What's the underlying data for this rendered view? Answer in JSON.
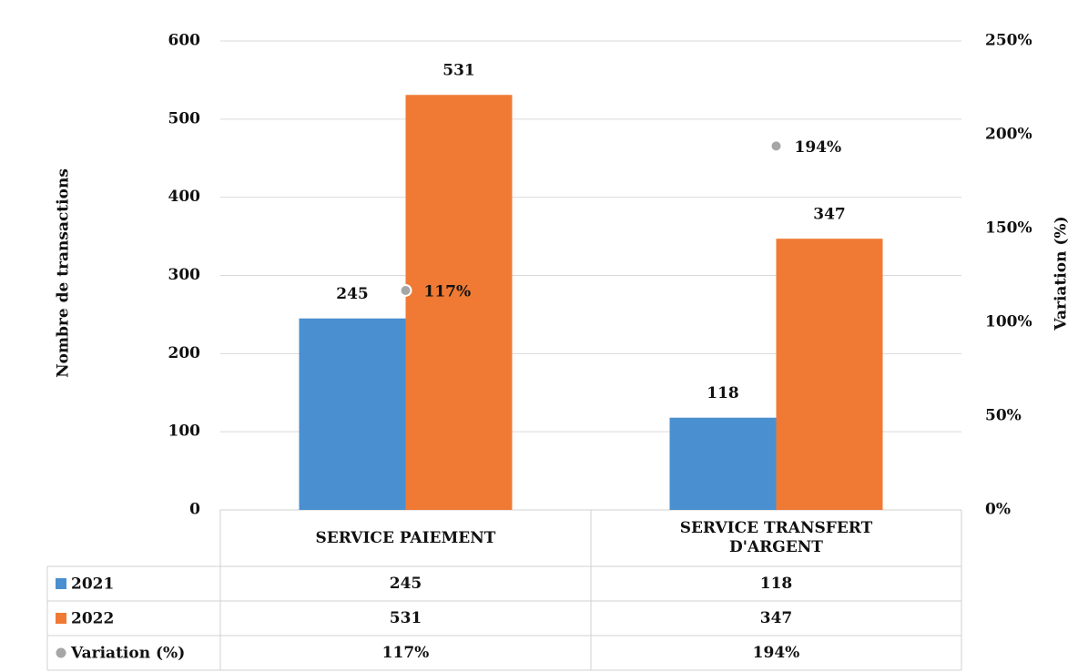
{
  "chart_data": {
    "type": "bar",
    "categories": [
      "SERVICE PAIEMENT",
      "SERVICE TRANSFERT D'ARGENT"
    ],
    "series": [
      {
        "name": "2021",
        "color": "#4a8fcf",
        "values": [
          245,
          118
        ]
      },
      {
        "name": "2022",
        "color": "#f07a33",
        "values": [
          531,
          347
        ]
      },
      {
        "name": "Variation (%)",
        "color": "#a6a6a6",
        "axis": "y2",
        "values": [
          117,
          194
        ],
        "value_labels": [
          "117%",
          "194%"
        ]
      }
    ],
    "y_label": "Nombre de transactions",
    "y2_label": "Variation (%)",
    "ylim": [
      0,
      600
    ],
    "yticks": [
      0,
      100,
      200,
      300,
      400,
      500,
      600
    ],
    "y2lim": [
      0,
      250
    ],
    "y2ticks": [
      {
        "value": 0,
        "label": "0%"
      },
      {
        "value": 50,
        "label": "50%"
      },
      {
        "value": 100,
        "label": "100%"
      },
      {
        "value": 150,
        "label": "150%"
      },
      {
        "value": 200,
        "label": "200%"
      },
      {
        "value": 250,
        "label": "250%"
      }
    ],
    "grid": true
  }
}
